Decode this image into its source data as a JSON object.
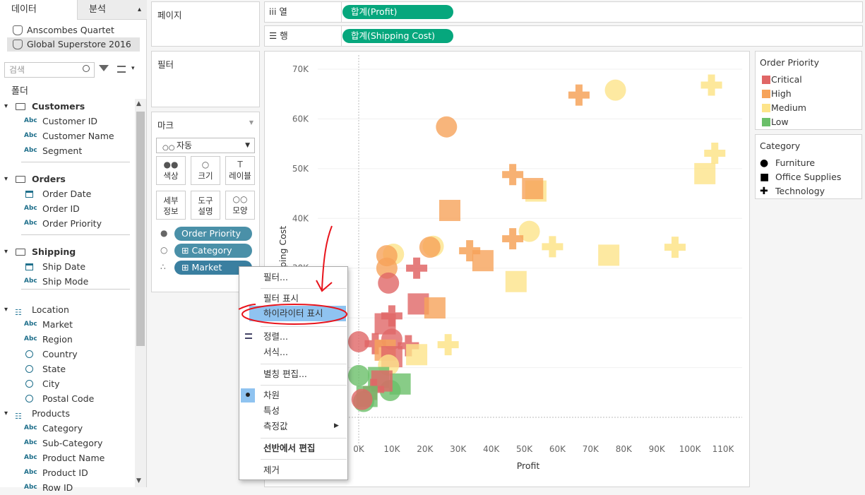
{
  "left_panel": {
    "tabs": [
      "데이터",
      "분석"
    ],
    "data_sources": [
      "Anscombes Quartet",
      "Global Superstore 2016"
    ],
    "search_placeholder": "검색",
    "folder_header": "폴더",
    "rows": [
      {
        "type": "group",
        "label": "Customers",
        "bold": true
      },
      {
        "type": "field",
        "icon": "Abc",
        "label": "Customer ID"
      },
      {
        "type": "field",
        "icon": "Abc",
        "label": "Customer Name"
      },
      {
        "type": "field",
        "icon": "Abc",
        "label": "Segment"
      },
      {
        "type": "group",
        "label": "Orders",
        "bold": true
      },
      {
        "type": "field",
        "icon": "date",
        "label": "Order Date"
      },
      {
        "type": "field",
        "icon": "Abc",
        "label": "Order ID"
      },
      {
        "type": "field",
        "icon": "Abc",
        "label": "Order Priority"
      },
      {
        "type": "group",
        "label": "Shipping",
        "bold": true
      },
      {
        "type": "field",
        "icon": "date",
        "label": "Ship Date"
      },
      {
        "type": "field",
        "icon": "Abc",
        "label": "Ship Mode"
      },
      {
        "type": "hier",
        "label": "Location"
      },
      {
        "type": "field",
        "icon": "Abc",
        "label": "Market"
      },
      {
        "type": "field",
        "icon": "Abc",
        "label": "Region"
      },
      {
        "type": "field",
        "icon": "geo",
        "label": "Country"
      },
      {
        "type": "field",
        "icon": "geo",
        "label": "State"
      },
      {
        "type": "field",
        "icon": "geo",
        "label": "City"
      },
      {
        "type": "field",
        "icon": "geo",
        "label": "Postal Code"
      },
      {
        "type": "hier",
        "label": "Products"
      },
      {
        "type": "field",
        "icon": "Abc",
        "label": "Category"
      },
      {
        "type": "field",
        "icon": "Abc",
        "label": "Sub-Category"
      },
      {
        "type": "field",
        "icon": "Abc",
        "label": "Product Name"
      },
      {
        "type": "field",
        "icon": "Abc",
        "label": "Product ID"
      },
      {
        "type": "field",
        "icon": "Abc",
        "label": "Row ID"
      }
    ]
  },
  "cards": {
    "pages": "페이지",
    "filters": "필터",
    "marks": "마크",
    "mark_type": "자동",
    "mark_buttons": [
      {
        "label": "색상",
        "icon": "color-icon"
      },
      {
        "label": "크기",
        "icon": "size-icon"
      },
      {
        "label": "레이블",
        "icon": "label-icon"
      },
      {
        "label": "세부\n정보",
        "icon": "detail-icon"
      },
      {
        "label": "도구\n설명",
        "icon": "tooltip-icon"
      },
      {
        "label": "모양",
        "icon": "shape-icon"
      }
    ],
    "mark_pills": [
      {
        "label": "Order Priority",
        "color": "#4a90a8"
      },
      {
        "label": "Category",
        "color": "#4a90a8"
      },
      {
        "label": "Market",
        "color": "#3a7fa0"
      }
    ]
  },
  "shelves": {
    "columns_label": "열",
    "columns_pill": "합계(Profit)",
    "rows_label": "행",
    "rows_pill": "합계(Shipping Cost)"
  },
  "legends": {
    "priority_title": "Order Priority",
    "priority_items": [
      {
        "label": "Critical",
        "color": "#e06666"
      },
      {
        "label": "High",
        "color": "#f6a35a"
      },
      {
        "label": "Medium",
        "color": "#fde48a"
      },
      {
        "label": "Low",
        "color": "#6abf69"
      }
    ],
    "category_title": "Category",
    "category_items": [
      {
        "label": "Furniture",
        "shape": "circle"
      },
      {
        "label": "Office Supplies",
        "shape": "square"
      },
      {
        "label": "Technology",
        "shape": "plus"
      }
    ]
  },
  "context_menu": {
    "items": [
      "필터...",
      "필터 표시",
      "하이라이터 표시",
      "정렬...",
      "서식...",
      "별칭 편집...",
      "차원",
      "특성",
      "측정값",
      "선반에서 편집",
      "제거"
    ]
  },
  "chart_data": {
    "type": "scatter",
    "xlabel": "Profit",
    "ylabel": "Shipping Cost",
    "x_ticks": [
      "0K",
      "10K",
      "20K",
      "30K",
      "40K",
      "50K",
      "60K",
      "70K",
      "80K",
      "90K",
      "100K",
      "110K"
    ],
    "y_ticks": [
      "70K",
      "60K",
      "50K",
      "40K",
      "30K"
    ],
    "xlim": [
      -5000,
      112000
    ],
    "ylim": [
      0,
      72000
    ],
    "points": [
      {
        "x": 77500,
        "y": 65800,
        "shape": "circle",
        "priority": "Medium"
      },
      {
        "x": 66500,
        "y": 64800,
        "shape": "plus",
        "priority": "High"
      },
      {
        "x": 106500,
        "y": 66800,
        "shape": "plus",
        "priority": "Medium"
      },
      {
        "x": 26500,
        "y": 58400,
        "shape": "circle",
        "priority": "High"
      },
      {
        "x": 107500,
        "y": 53100,
        "shape": "plus",
        "priority": "Medium"
      },
      {
        "x": 104500,
        "y": 49000,
        "shape": "square",
        "priority": "Medium"
      },
      {
        "x": 46500,
        "y": 48800,
        "shape": "plus",
        "priority": "High"
      },
      {
        "x": 53500,
        "y": 45500,
        "shape": "square",
        "priority": "Medium"
      },
      {
        "x": 52500,
        "y": 46000,
        "shape": "square",
        "priority": "High"
      },
      {
        "x": 27500,
        "y": 41600,
        "shape": "square",
        "priority": "High"
      },
      {
        "x": 51500,
        "y": 37400,
        "shape": "circle",
        "priority": "Medium"
      },
      {
        "x": 46500,
        "y": 35900,
        "shape": "plus",
        "priority": "High"
      },
      {
        "x": 58500,
        "y": 34300,
        "shape": "plus",
        "priority": "Medium"
      },
      {
        "x": 95500,
        "y": 34200,
        "shape": "plus",
        "priority": "Medium"
      },
      {
        "x": 75500,
        "y": 32600,
        "shape": "square",
        "priority": "Medium"
      },
      {
        "x": 22500,
        "y": 34400,
        "shape": "circle",
        "priority": "Medium"
      },
      {
        "x": 21500,
        "y": 34200,
        "shape": "circle",
        "priority": "High"
      },
      {
        "x": 33500,
        "y": 33500,
        "shape": "plus",
        "priority": "High"
      },
      {
        "x": 37500,
        "y": 31500,
        "shape": "square",
        "priority": "High"
      },
      {
        "x": 10500,
        "y": 32800,
        "shape": "circle",
        "priority": "Medium"
      },
      {
        "x": 8500,
        "y": 32500,
        "shape": "circle",
        "priority": "High"
      },
      {
        "x": 8500,
        "y": 30000,
        "shape": "circle",
        "priority": "High"
      },
      {
        "x": 17500,
        "y": 30000,
        "shape": "plus",
        "priority": "Critical"
      },
      {
        "x": 47500,
        "y": 27300,
        "shape": "square",
        "priority": "Medium"
      },
      {
        "x": 9000,
        "y": 27000,
        "shape": "circle",
        "priority": "Critical"
      },
      {
        "x": 18000,
        "y": 22800,
        "shape": "square",
        "priority": "Critical"
      },
      {
        "x": 23000,
        "y": 22000,
        "shape": "square",
        "priority": "High"
      },
      {
        "x": 10000,
        "y": 20400,
        "shape": "plus",
        "priority": "Critical"
      },
      {
        "x": 8000,
        "y": 18800,
        "shape": "square",
        "priority": "Critical"
      },
      {
        "x": 27000,
        "y": 14600,
        "shape": "plus",
        "priority": "Medium"
      },
      {
        "x": 0,
        "y": 15200,
        "shape": "circle",
        "priority": "Critical"
      },
      {
        "x": 10000,
        "y": 15700,
        "shape": "circle",
        "priority": "Critical"
      },
      {
        "x": 5000,
        "y": 14800,
        "shape": "plus",
        "priority": "Critical"
      },
      {
        "x": 15000,
        "y": 14400,
        "shape": "plus",
        "priority": "Critical"
      },
      {
        "x": 17500,
        "y": 12600,
        "shape": "square",
        "priority": "Medium"
      },
      {
        "x": 8000,
        "y": 13500,
        "shape": "square",
        "priority": "High"
      },
      {
        "x": 10000,
        "y": 12200,
        "shape": "square",
        "priority": "Critical"
      },
      {
        "x": 9000,
        "y": 10500,
        "shape": "circle",
        "priority": "Medium"
      },
      {
        "x": 0,
        "y": 8400,
        "shape": "circle",
        "priority": "Low"
      },
      {
        "x": 6000,
        "y": 8000,
        "shape": "square",
        "priority": "Low"
      },
      {
        "x": 12500,
        "y": 6700,
        "shape": "square",
        "priority": "Low"
      },
      {
        "x": 9500,
        "y": 5400,
        "shape": "circle",
        "priority": "Low"
      },
      {
        "x": 4500,
        "y": 5600,
        "shape": "plus",
        "priority": "Critical"
      },
      {
        "x": 7000,
        "y": 7300,
        "shape": "square",
        "priority": "Critical"
      },
      {
        "x": 2500,
        "y": 4200,
        "shape": "square",
        "priority": "Low"
      },
      {
        "x": 1500,
        "y": 3200,
        "shape": "circle",
        "priority": "Low"
      },
      {
        "x": 1000,
        "y": 3600,
        "shape": "circle",
        "priority": "Critical"
      }
    ],
    "annotation": "red hand-drawn arrow and circle highlighting 하이라이터 표시"
  }
}
